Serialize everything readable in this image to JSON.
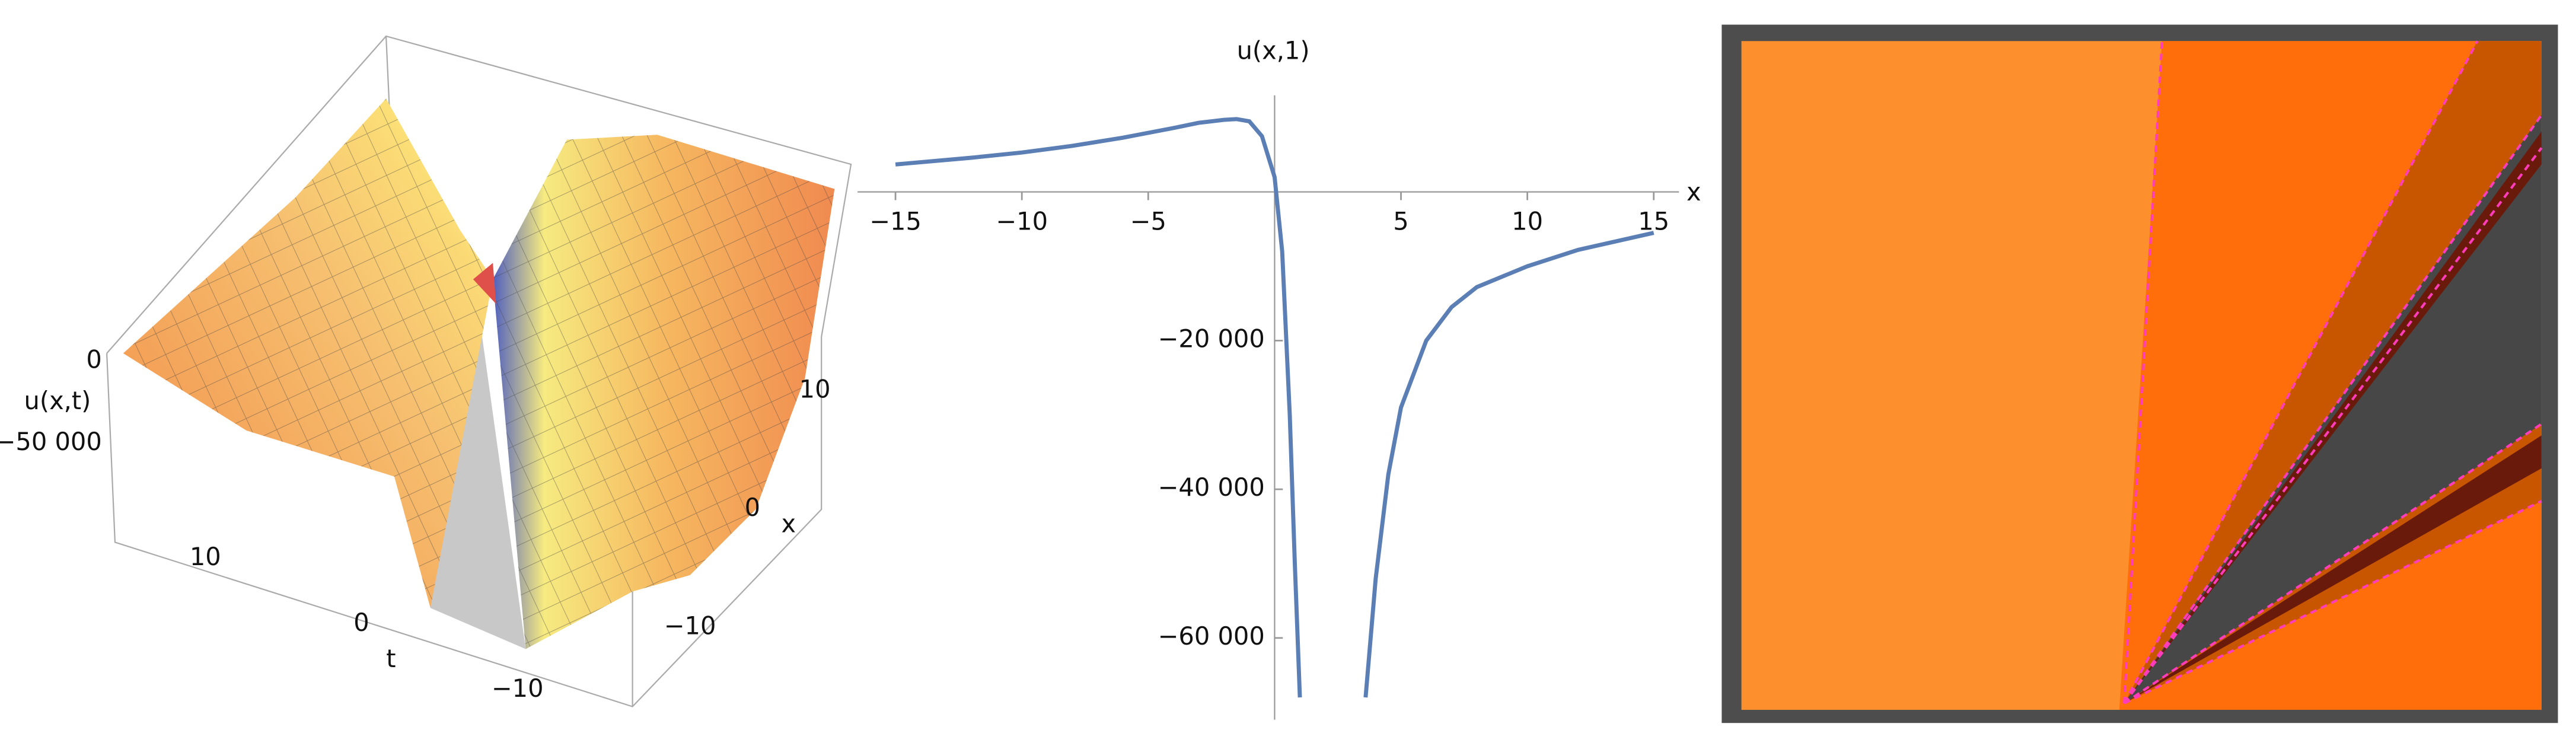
{
  "chart_data": [
    {
      "type": "surface3d",
      "zlabel": "u(x,t)",
      "xlabel": "x",
      "ylabel": "t",
      "zticks": [
        0,
        {
          "value": -50000,
          "label": "−50 000"
        }
      ],
      "xticks": [
        {
          "value": -10,
          "label": "−10"
        },
        0,
        10
      ],
      "yticks": [
        {
          "value": -10,
          "label": "−10"
        },
        0,
        10
      ]
    },
    {
      "type": "line",
      "title": "u(x,1)",
      "xlabel": "x",
      "x": [
        -15,
        -12,
        -10,
        -8,
        -6,
        -4,
        -3,
        -2,
        -1.5,
        -1,
        -0.5,
        0,
        0.3,
        0.6,
        0.8,
        1.0,
        2.3,
        3.6,
        4,
        4.5,
        5,
        6,
        7,
        8,
        10,
        12,
        15
      ],
      "series": [
        {
          "name": "u(x,1)",
          "color": "#5b7fb5",
          "values": [
            3700,
            4600,
            5300,
            6200,
            7300,
            8600,
            9300,
            9700,
            9800,
            9500,
            7500,
            2000,
            -8000,
            -30000,
            -50000,
            -68000,
            null,
            -68000,
            -52000,
            -38000,
            -29000,
            -20000,
            -15500,
            -12800,
            -10000,
            -7800,
            -5500
          ]
        }
      ],
      "xlim": [
        -16.5,
        16
      ],
      "ylim": [
        -71000,
        13000
      ],
      "xticks": [
        {
          "value": -15,
          "label": "−15"
        },
        {
          "value": -10,
          "label": "−10"
        },
        {
          "value": -5,
          "label": "−5"
        },
        5,
        10,
        15
      ],
      "yticks": [
        {
          "value": -20000,
          "label": "−20 000"
        },
        {
          "value": -40000,
          "label": "−40 000"
        },
        {
          "value": -60000,
          "label": "−60 000"
        }
      ]
    }
  ]
}
